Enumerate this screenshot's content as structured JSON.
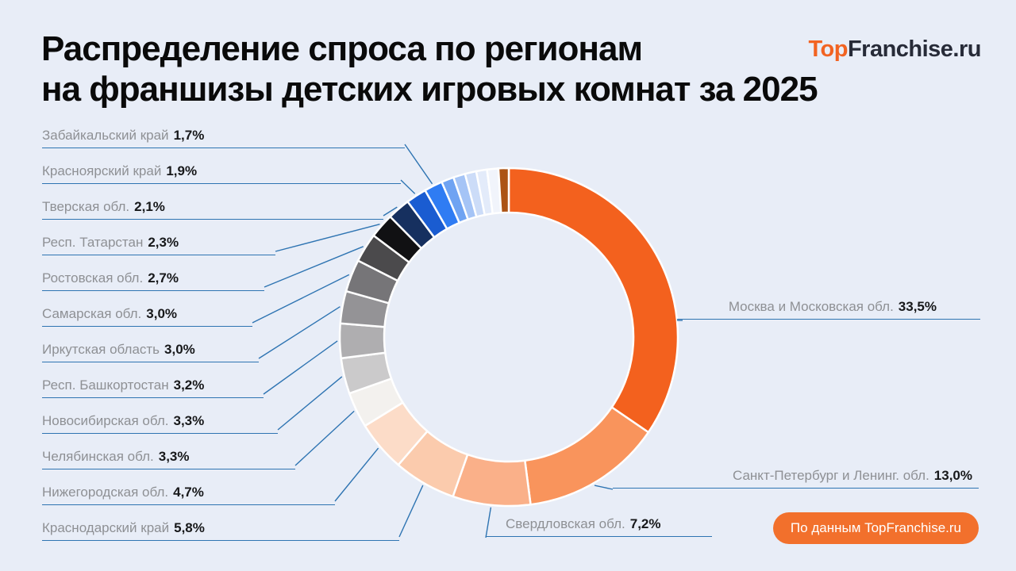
{
  "title": {
    "line1": "Распределение спроса по регионам",
    "line2": "на франшизы детских игровых комнат за 2025"
  },
  "logo": {
    "prefix": "Top",
    "suffix": "Franchise.ru",
    "prefix_color": "#F26322",
    "suffix_color": "#272B38"
  },
  "source_badge": {
    "label": "По данным TopFranchise.ru",
    "bg_color": "#F2702C",
    "text_color": "#FFFFFF"
  },
  "colors": {
    "background": "#E8EDF7",
    "leader_line": "#2E74B2",
    "label_name": "#8E9094",
    "label_percent": "#17181A",
    "accent_orange": "#F3611E"
  },
  "chart_data": {
    "type": "pie",
    "subtype": "donut",
    "title": "Распределение спроса по регионам на франшизы детских игровых комнат за 2025",
    "unit": "%",
    "legend_position": "callout-labels",
    "source": "По данным TopFranchise.ru",
    "segments": [
      {
        "label": "Москва и Московская обл.",
        "value": 33.5,
        "display": "33,5%",
        "color": "#F3611E",
        "side": "right"
      },
      {
        "label": "Санкт-Петербург и Ленинг. обл.",
        "value": 13.0,
        "display": "13,0%",
        "color": "#F9945C",
        "side": "right"
      },
      {
        "label": "Свердловская обл.",
        "value": 7.2,
        "display": "7,2%",
        "color": "#FAB089",
        "side": "right"
      },
      {
        "label": "Краснодарский край",
        "value": 5.8,
        "display": "5,8%",
        "color": "#FBCBAD",
        "side": "left"
      },
      {
        "label": "Нижегородская обл.",
        "value": 4.7,
        "display": "4,7%",
        "color": "#FCDCC8",
        "side": "left"
      },
      {
        "label": "Челябинская обл.",
        "value": 3.3,
        "display": "3,3%",
        "color": "#F3F1EE",
        "side": "left"
      },
      {
        "label": "Новосибирская обл.",
        "value": 3.3,
        "display": "3,3%",
        "color": "#CBCACB",
        "side": "left"
      },
      {
        "label": "Респ. Башкортостан",
        "value": 3.2,
        "display": "3,2%",
        "color": "#AFAEB0",
        "side": "left"
      },
      {
        "label": "Иркутская область",
        "value": 3.0,
        "display": "3,0%",
        "color": "#949396",
        "side": "left"
      },
      {
        "label": "Самарская обл.",
        "value": 3.0,
        "display": "3,0%",
        "color": "#767578",
        "side": "left"
      },
      {
        "label": "Ростовская обл.",
        "value": 2.7,
        "display": "2,7%",
        "color": "#4B4A4C",
        "side": "left"
      },
      {
        "label": "Респ. Татарстан",
        "value": 2.3,
        "display": "2,3%",
        "color": "#111113",
        "side": "left"
      },
      {
        "label": "Тверская обл.",
        "value": 2.1,
        "display": "2,1%",
        "color": "#16305F",
        "side": "left"
      },
      {
        "label": "Красноярский край",
        "value": 1.9,
        "display": "1,9%",
        "color": "#1A5CD1",
        "side": "left"
      },
      {
        "label": "Забайкальский край",
        "value": 1.7,
        "display": "1,7%",
        "color": "#2F7CF3",
        "side": "left"
      }
    ],
    "other_segments": [
      {
        "label": "",
        "value": 1.15,
        "color": "#6FA3F2"
      },
      {
        "label": "",
        "value": 1.1,
        "color": "#A5C4F6"
      },
      {
        "label": "",
        "value": 1.05,
        "color": "#CCDCF8"
      },
      {
        "label": "",
        "value": 1.0,
        "color": "#E3EBFA"
      },
      {
        "label": "",
        "value": 1.05,
        "color": "#F1F4FB"
      },
      {
        "label": "",
        "value": 0.95,
        "color": "#AC5315"
      }
    ]
  }
}
